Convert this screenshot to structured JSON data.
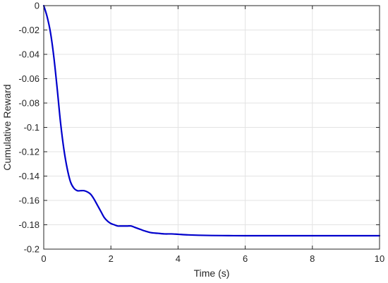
{
  "chart_data": {
    "type": "line",
    "title": "",
    "xlabel": "Time (s)",
    "ylabel": "Cumulative Reward",
    "xlim": [
      0,
      10
    ],
    "ylim": [
      -0.2,
      0
    ],
    "xticks": [
      0,
      2,
      4,
      6,
      8,
      10
    ],
    "xtick_labels": [
      "0",
      "2",
      "4",
      "6",
      "8",
      "10"
    ],
    "yticks": [
      0,
      -0.02,
      -0.04,
      -0.06,
      -0.08,
      -0.1,
      -0.12,
      -0.14,
      -0.16,
      -0.18,
      -0.2
    ],
    "ytick_labels": [
      "0",
      "-0.02",
      "-0.04",
      "-0.06",
      "-0.08",
      "-0.1",
      "-0.12",
      "-0.14",
      "-0.16",
      "-0.18",
      "-0.2"
    ],
    "grid": true,
    "series": [
      {
        "color": "#0000cc",
        "x": [
          0,
          0.1,
          0.2,
          0.3,
          0.4,
          0.5,
          0.6,
          0.7,
          0.8,
          0.9,
          1.0,
          1.1,
          1.2,
          1.3,
          1.4,
          1.5,
          1.6,
          1.7,
          1.8,
          1.9,
          2.0,
          2.1,
          2.2,
          2.3,
          2.4,
          2.5,
          2.6,
          2.7,
          2.8,
          2.9,
          3.0,
          3.2,
          3.4,
          3.6,
          3.8,
          4.0,
          4.3,
          4.6,
          5.0,
          5.5,
          6.0,
          7.0,
          8.0,
          9.0,
          10.0
        ],
        "y": [
          0,
          -0.009,
          -0.022,
          -0.042,
          -0.068,
          -0.096,
          -0.118,
          -0.134,
          -0.145,
          -0.15,
          -0.152,
          -0.152,
          -0.152,
          -0.153,
          -0.155,
          -0.159,
          -0.164,
          -0.169,
          -0.174,
          -0.177,
          -0.179,
          -0.18,
          -0.181,
          -0.181,
          -0.181,
          -0.181,
          -0.181,
          -0.182,
          -0.183,
          -0.184,
          -0.185,
          -0.1865,
          -0.187,
          -0.1875,
          -0.1875,
          -0.1878,
          -0.1883,
          -0.1886,
          -0.1888,
          -0.1889,
          -0.189,
          -0.189,
          -0.189,
          -0.189,
          -0.189
        ]
      }
    ]
  }
}
